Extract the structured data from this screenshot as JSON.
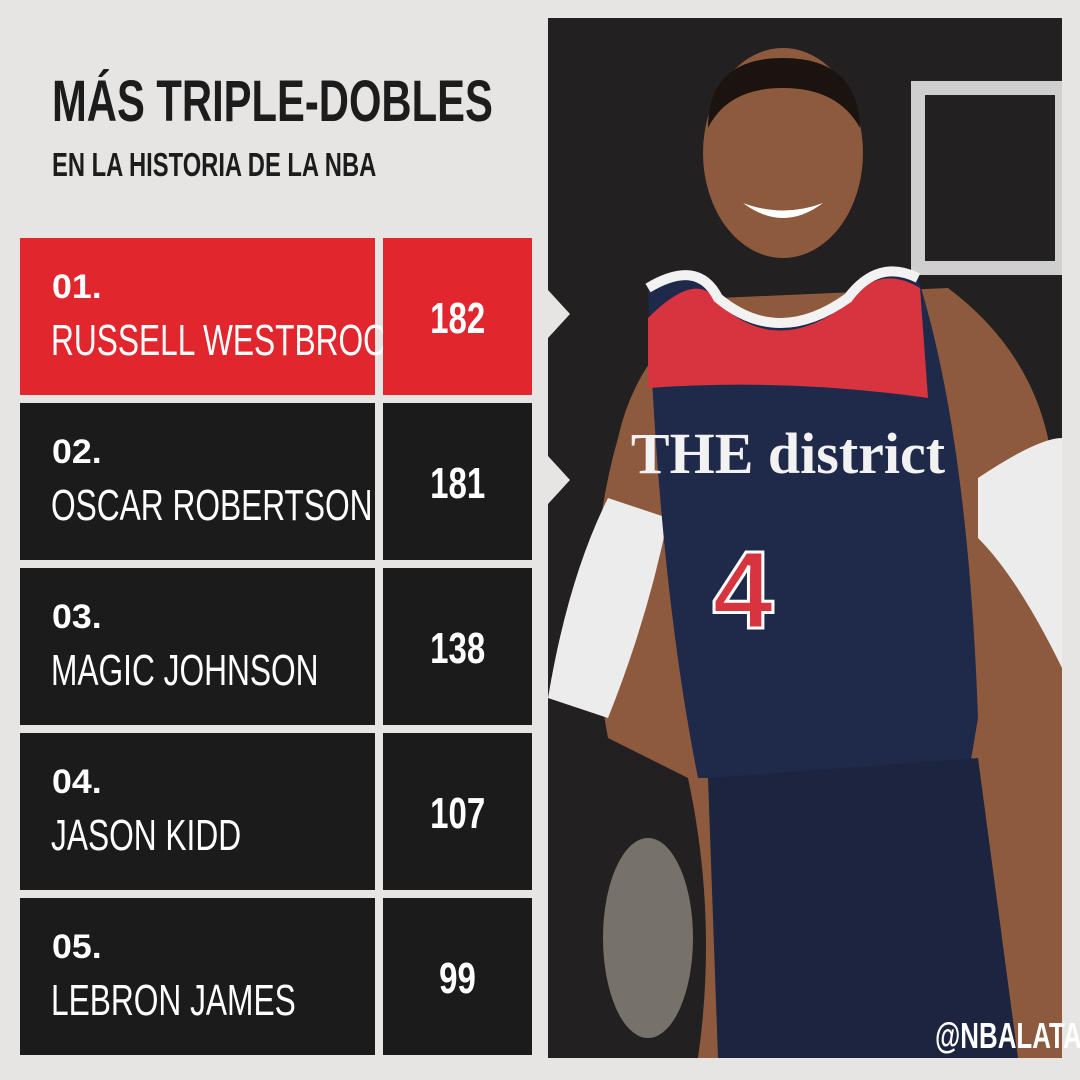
{
  "header": {
    "title": "MÁS TRIPLE-DOBLES",
    "subtitle": "EN LA HISTORIA DE LA NBA"
  },
  "table": {
    "rows": [
      {
        "rank": "01.",
        "name": "RUSSELL WESTBROOK",
        "value": 182
      },
      {
        "rank": "02.",
        "name": "OSCAR ROBERTSON",
        "value": 181
      },
      {
        "rank": "03.",
        "name": "MAGIC JOHNSON",
        "value": 138
      },
      {
        "rank": "04.",
        "name": "JASON KIDD",
        "value": 107
      },
      {
        "rank": "05.",
        "name": "LEBRON JAMES",
        "value": 99
      }
    ]
  },
  "photo": {
    "jersey_brand": "THE district",
    "jersey_number": "4"
  },
  "footer": {
    "handle": "@NBALATAM"
  }
}
